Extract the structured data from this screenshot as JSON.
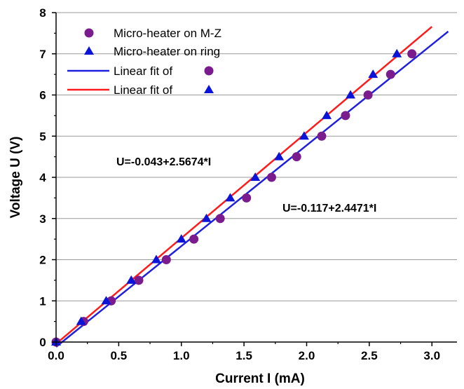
{
  "chart_data": {
    "type": "scatter",
    "xlabel": "Current I (mA)",
    "ylabel": "Voltage U (V)",
    "xlim": [
      0,
      3.2
    ],
    "ylim": [
      0,
      8
    ],
    "x_ticks": [
      "0.0",
      "0.5",
      "1.0",
      "1.5",
      "2.0",
      "2.5",
      "3.0"
    ],
    "y_ticks": [
      "0",
      "1",
      "2",
      "3",
      "4",
      "5",
      "6",
      "7",
      "8"
    ],
    "grid": "horizontal",
    "legend_position": "top-left",
    "series": [
      {
        "label": "Micro-heater on M-Z",
        "marker": "circle",
        "color": "#7b1c8e",
        "x": [
          0.0,
          0.22,
          0.44,
          0.66,
          0.88,
          1.1,
          1.31,
          1.52,
          1.72,
          1.92,
          2.12,
          2.31,
          2.49,
          2.67,
          2.84
        ],
        "y": [
          0.0,
          0.5,
          1.0,
          1.5,
          2.0,
          2.5,
          3.0,
          3.5,
          4.0,
          4.5,
          5.0,
          5.5,
          6.0,
          6.5,
          7.0
        ]
      },
      {
        "label": "Micro-heater on ring",
        "marker": "triangle",
        "color": "#0a14d8",
        "x": [
          0.0,
          0.2,
          0.4,
          0.6,
          0.8,
          1.0,
          1.2,
          1.39,
          1.59,
          1.78,
          1.98,
          2.16,
          2.35,
          2.53,
          2.72
        ],
        "y": [
          0.0,
          0.5,
          1.0,
          1.5,
          2.0,
          2.5,
          3.0,
          3.5,
          4.0,
          4.5,
          5.0,
          5.5,
          6.0,
          6.5,
          7.0
        ]
      }
    ],
    "fits": [
      {
        "label": "Linear fit of",
        "legend_marker": "circle",
        "marker_color": "#7b1c8e",
        "line_color": "#1f1fe0",
        "intercept": -0.117,
        "slope": 2.4471,
        "x_range": [
          0.0,
          3.13
        ],
        "equation": "U=-0.117+2.4471*I"
      },
      {
        "label": "Linear fit of",
        "legend_marker": "triangle",
        "marker_color": "#0a14d8",
        "line_color": "#ff1a1a",
        "intercept": -0.043,
        "slope": 2.5674,
        "x_range": [
          0.0,
          3.0
        ],
        "equation": "U=-0.043+2.5674*I"
      }
    ]
  }
}
